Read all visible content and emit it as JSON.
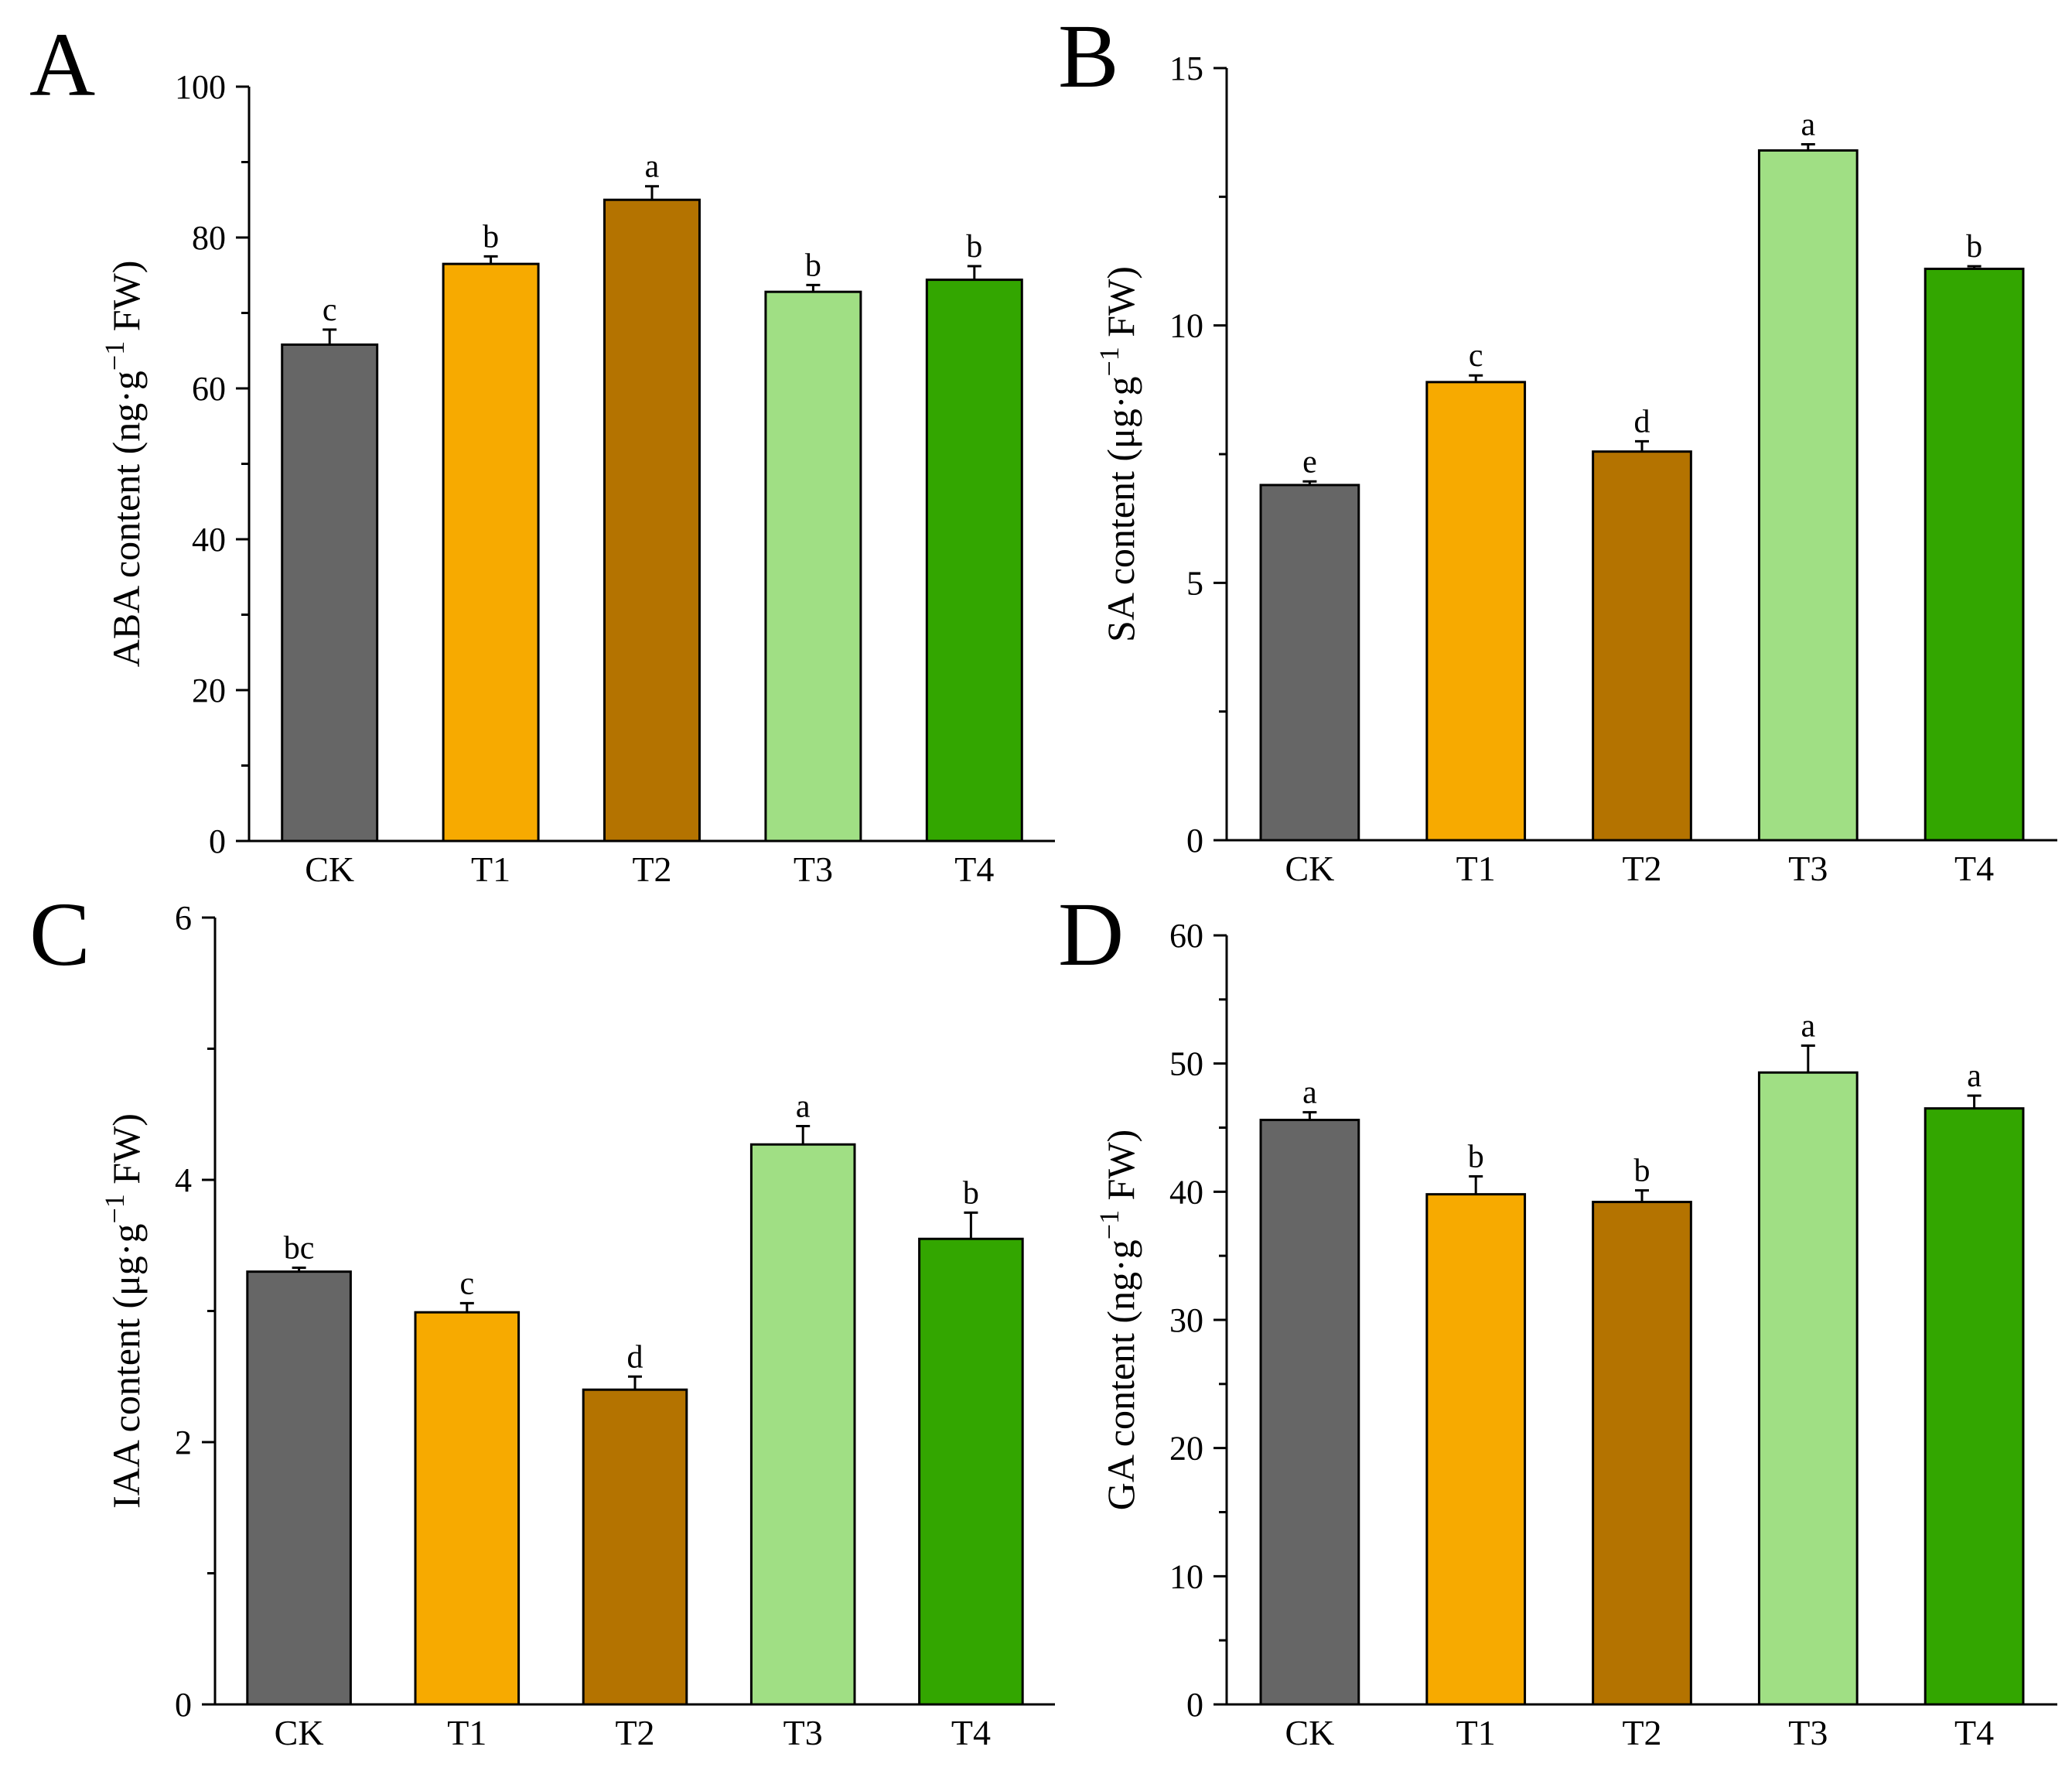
{
  "figure": {
    "colors": {
      "CK": "#666666",
      "T1": "#f7aa00",
      "T2": "#b47300",
      "T3": "#a0df84",
      "T4": "#33a600"
    }
  },
  "chart_data": [
    {
      "panel": "A",
      "type": "bar",
      "categories": [
        "CK",
        "T1",
        "T2",
        "T3",
        "T4"
      ],
      "values": [
        65.8,
        76.5,
        85.0,
        72.8,
        74.4
      ],
      "errors": [
        2.0,
        1.0,
        1.8,
        0.9,
        1.8
      ],
      "significance": [
        "c",
        "b",
        "a",
        "b",
        "b"
      ],
      "ylabel": {
        "prefix": "ABA content (ng·g",
        "sup": "−1",
        "suffix": " FW)"
      },
      "ylim": [
        0,
        100
      ],
      "yticks": [
        0,
        20,
        40,
        60,
        80,
        100
      ],
      "yticklabels": [
        "0",
        "20",
        "40",
        "60",
        "80",
        "100"
      ],
      "minor_step": 10
    },
    {
      "panel": "B",
      "type": "bar",
      "categories": [
        "CK",
        "T1",
        "T2",
        "T3",
        "T4"
      ],
      "values": [
        6.9,
        8.9,
        7.55,
        13.4,
        11.1
      ],
      "errors": [
        0.07,
        0.13,
        0.2,
        0.12,
        0.05
      ],
      "significance": [
        "e",
        "c",
        "d",
        "a",
        "b"
      ],
      "ylabel": {
        "prefix": "SA content (μg·g",
        "sup": "−1",
        "suffix": " FW)"
      },
      "ylim": [
        0,
        15
      ],
      "yticks": [
        0,
        5,
        10,
        15
      ],
      "yticklabels": [
        "0",
        "5",
        "10",
        "15"
      ],
      "minor_step": 2.5
    },
    {
      "panel": "C",
      "type": "bar",
      "categories": [
        "CK",
        "T1",
        "T2",
        "T3",
        "T4"
      ],
      "values": [
        3.3,
        2.99,
        2.4,
        4.27,
        3.55
      ],
      "errors": [
        0.03,
        0.07,
        0.1,
        0.14,
        0.2
      ],
      "significance": [
        "bc",
        "c",
        "d",
        "a",
        "b"
      ],
      "ylabel": {
        "prefix": "IAA content (μg·g",
        "sup": "−1",
        "suffix": " FW)"
      },
      "ylim": [
        0,
        6
      ],
      "yticks": [
        0,
        2,
        4,
        6
      ],
      "yticklabels": [
        "0",
        "2",
        "4",
        "6"
      ],
      "minor_step": 1
    },
    {
      "panel": "D",
      "type": "bar",
      "categories": [
        "CK",
        "T1",
        "T2",
        "T3",
        "T4"
      ],
      "values": [
        45.6,
        39.8,
        39.2,
        49.3,
        46.5
      ],
      "errors": [
        0.6,
        1.4,
        0.9,
        2.1,
        1.0
      ],
      "significance": [
        "a",
        "b",
        "b",
        "a",
        "a"
      ],
      "ylabel": {
        "prefix": "GA content (ng·g",
        "sup": "−1",
        "suffix": " FW)"
      },
      "ylim": [
        0,
        60
      ],
      "yticks": [
        0,
        10,
        20,
        30,
        40,
        50,
        60
      ],
      "yticklabels": [
        "0",
        "10",
        "20",
        "30",
        "40",
        "50",
        "60"
      ],
      "minor_step": 5
    }
  ]
}
